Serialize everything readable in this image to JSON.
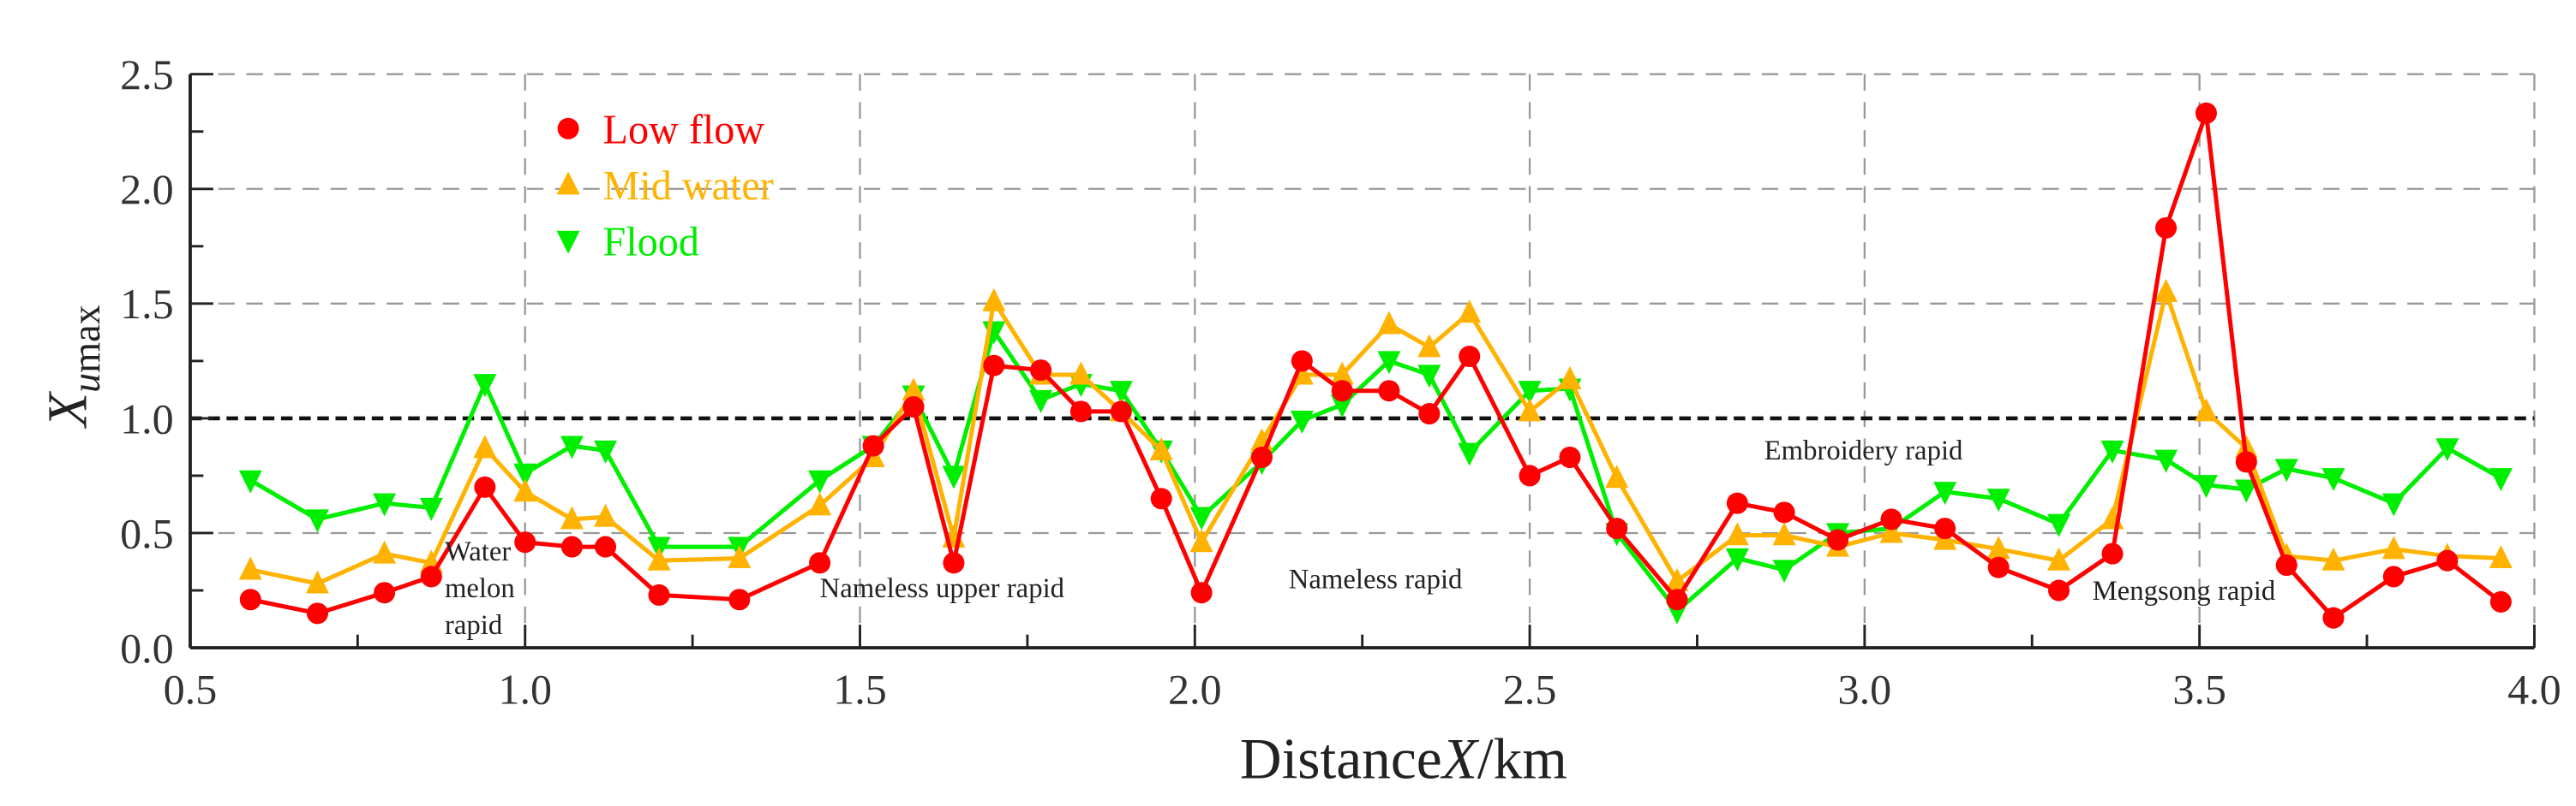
{
  "chart_data": {
    "type": "line",
    "title": "",
    "xlabel": "Distance X/km",
    "xlabel_parts": {
      "prefix": "Distance",
      "var": "X",
      "suffix": "/km"
    },
    "ylabel": "X umax",
    "ylabel_parts": {
      "var": "X",
      "sub": "u",
      "subrest": "max"
    },
    "xlim": [
      0.5,
      4.0
    ],
    "ylim": [
      0.0,
      2.5
    ],
    "xticks": [
      "0.5",
      "1.0",
      "1.5",
      "2.0",
      "2.5",
      "3.0",
      "3.5",
      "4.0"
    ],
    "yticks": [
      "0.0",
      "0.5",
      "1.0",
      "1.5",
      "2.0",
      "2.5"
    ],
    "grid": true,
    "reference_line": 1.0,
    "legend_position": "top-left",
    "x": [
      0.59,
      0.69,
      0.79,
      0.86,
      0.94,
      1.0,
      1.07,
      1.12,
      1.2,
      1.32,
      1.44,
      1.52,
      1.58,
      1.64,
      1.7,
      1.77,
      1.83,
      1.89,
      1.95,
      2.01,
      2.1,
      2.16,
      2.22,
      2.29,
      2.35,
      2.41,
      2.5,
      2.56,
      2.63,
      2.72,
      2.81,
      2.88,
      2.96,
      3.04,
      3.12,
      3.2,
      3.29,
      3.37,
      3.45,
      3.51,
      3.57,
      3.63,
      3.7,
      3.79,
      3.87,
      3.95
    ],
    "series": [
      {
        "name": "Low flow",
        "color": "#ff0000",
        "marker": "circle",
        "values": [
          0.21,
          0.15,
          0.24,
          0.31,
          0.7,
          0.46,
          0.44,
          0.44,
          0.23,
          0.21,
          0.37,
          0.88,
          1.05,
          0.37,
          1.23,
          1.21,
          1.03,
          1.03,
          0.65,
          0.24,
          0.83,
          1.25,
          1.12,
          1.12,
          1.02,
          1.27,
          0.75,
          0.83,
          0.52,
          0.21,
          0.63,
          0.59,
          0.47,
          0.56,
          0.52,
          0.35,
          0.25,
          0.41,
          1.83,
          2.33,
          0.81,
          0.36,
          0.13,
          0.31,
          0.38,
          0.2
        ]
      },
      {
        "name": "Mid water",
        "color": "#ffb300",
        "marker": "triangle-up",
        "values": [
          0.34,
          0.28,
          0.41,
          0.37,
          0.87,
          0.68,
          0.56,
          0.57,
          0.38,
          0.39,
          0.62,
          0.83,
          1.12,
          0.48,
          1.51,
          1.19,
          1.19,
          1.03,
          0.86,
          0.46,
          0.9,
          1.19,
          1.19,
          1.41,
          1.31,
          1.46,
          1.03,
          1.17,
          0.74,
          0.29,
          0.49,
          0.49,
          0.44,
          0.5,
          0.47,
          0.43,
          0.38,
          0.56,
          1.55,
          1.03,
          0.87,
          0.4,
          0.38,
          0.43,
          0.4,
          0.39
        ]
      },
      {
        "name": "Flood",
        "color": "#00ee00",
        "marker": "triangle-down",
        "values": [
          0.73,
          0.56,
          0.63,
          0.61,
          1.15,
          0.76,
          0.88,
          0.86,
          0.44,
          0.44,
          0.73,
          0.88,
          1.1,
          0.75,
          1.38,
          1.08,
          1.15,
          1.12,
          0.86,
          0.57,
          0.81,
          0.99,
          1.06,
          1.25,
          1.19,
          0.85,
          1.12,
          1.13,
          0.5,
          0.16,
          0.39,
          0.34,
          0.5,
          0.52,
          0.68,
          0.65,
          0.54,
          0.86,
          0.82,
          0.71,
          0.69,
          0.78,
          0.74,
          0.63,
          0.87,
          0.74
        ]
      }
    ],
    "annotations": [
      {
        "text": "Water",
        "x": 0.88,
        "y": 0.38
      },
      {
        "text": "melon",
        "x": 0.88,
        "y": 0.22
      },
      {
        "text": "rapid",
        "x": 0.88,
        "y": 0.06
      },
      {
        "text": "Nameless upper rapid",
        "x": 1.44,
        "y": 0.22
      },
      {
        "text": "Nameless rapid",
        "x": 2.14,
        "y": 0.26
      },
      {
        "text": "Embroidery rapid",
        "x": 2.85,
        "y": 0.82
      },
      {
        "text": "Mengsong rapid",
        "x": 3.34,
        "y": 0.21
      }
    ]
  }
}
